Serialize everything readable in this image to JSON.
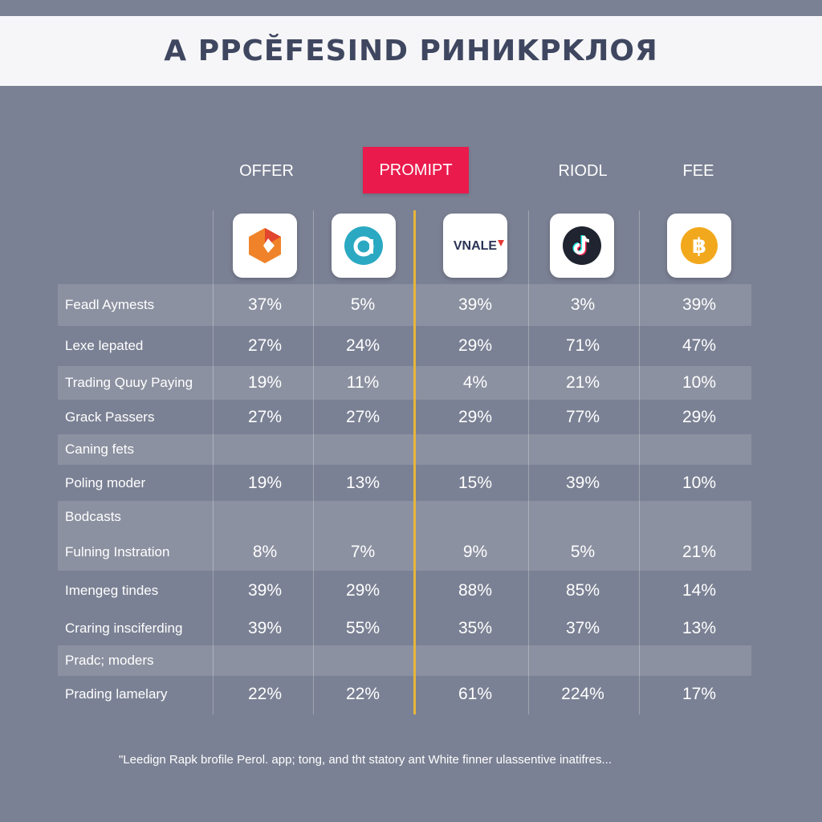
{
  "title": "A PPCĔFESIND PИHИKPKЛOЯ",
  "columns": [
    {
      "header": "OFFER",
      "logo": "orange-hexagon-logo",
      "highlight": false
    },
    {
      "header": "",
      "logo": "teal-circle-a-logo",
      "highlight": false
    },
    {
      "header": "PROMIPT",
      "logo": "vnale-logo",
      "highlight": true
    },
    {
      "header": "RIODL",
      "logo": "tiktok-logo",
      "highlight": false
    },
    {
      "header": "FEE",
      "logo": "bitcoin-logo",
      "highlight": false
    }
  ],
  "logo_text": {
    "vnale": "VNALE"
  },
  "rows": [
    {
      "label": "Feadl Aymests",
      "values": [
        "37%",
        "5%",
        "39%",
        "3%",
        "39%"
      ]
    },
    {
      "label": "Lexe lepated",
      "values": [
        "27%",
        "24%",
        "29%",
        "71%",
        "47%"
      ]
    },
    {
      "label": "Trading Quuy Paying",
      "values": [
        "19%",
        "11%",
        "4%",
        "21%",
        "10%"
      ]
    },
    {
      "label": "Grack Passers",
      "values": [
        "27%",
        "27%",
        "29%",
        "77%",
        "29%"
      ]
    },
    {
      "label": "Caning fets",
      "values": [
        "",
        "",
        "",
        "",
        ""
      ]
    },
    {
      "label": "Poling moder",
      "values": [
        "19%",
        "13%",
        "15%",
        "39%",
        "10%"
      ]
    },
    {
      "label": "Bodcasts",
      "values": [
        "",
        "",
        "",
        "",
        ""
      ]
    },
    {
      "label": "Fulning Instration",
      "values": [
        "8%",
        "7%",
        "9%",
        "5%",
        "21%"
      ]
    },
    {
      "label": "Imengeg tindes",
      "values": [
        "39%",
        "29%",
        "88%",
        "85%",
        "14%"
      ]
    },
    {
      "label": "Craring insciferding",
      "values": [
        "39%",
        "55%",
        "35%",
        "37%",
        "13%"
      ]
    },
    {
      "label": "Pradc; moders",
      "values": [
        "",
        "",
        "",
        "",
        ""
      ]
    },
    {
      "label": "Prading lamelary",
      "values": [
        "22%",
        "22%",
        "61%",
        "224%",
        "17%"
      ]
    }
  ],
  "footnote": "\"Leedign Rapk brofile Perol. app; tong, and tht statory ant White finner ulassentive inatifres...",
  "colors": {
    "background": "#7b8194",
    "title_bar": "#f6f6f8",
    "title_text": "#3f4760",
    "highlight": "#ea1a4c",
    "divider": "#e8b53a"
  },
  "chart_data": {
    "type": "table",
    "title": "A PPCĔFESIND PИHИKPKЛOЯ",
    "columns": [
      "OFFER",
      "",
      "PROMIPT",
      "RIODL",
      "FEE"
    ],
    "rows": [
      {
        "label": "Feadl Aymests",
        "values": [
          "37%",
          "5%",
          "39%",
          "3%",
          "39%"
        ]
      },
      {
        "label": "Lexe lepated",
        "values": [
          "27%",
          "24%",
          "29%",
          "71%",
          "47%"
        ]
      },
      {
        "label": "Trading Quuy Paying",
        "values": [
          "19%",
          "11%",
          "4%",
          "21%",
          "10%"
        ]
      },
      {
        "label": "Grack Passers",
        "values": [
          "27%",
          "27%",
          "29%",
          "77%",
          "29%"
        ]
      },
      {
        "label": "Caning fets",
        "values": [
          "",
          "",
          "",
          "",
          ""
        ]
      },
      {
        "label": "Poling moder",
        "values": [
          "19%",
          "13%",
          "15%",
          "39%",
          "10%"
        ]
      },
      {
        "label": "Bodcasts",
        "values": [
          "",
          "",
          "",
          "",
          ""
        ]
      },
      {
        "label": "Fulning Instration",
        "values": [
          "8%",
          "7%",
          "9%",
          "5%",
          "21%"
        ]
      },
      {
        "label": "Imengeg tindes",
        "values": [
          "39%",
          "29%",
          "88%",
          "85%",
          "14%"
        ]
      },
      {
        "label": "Craring insciferding",
        "values": [
          "39%",
          "55%",
          "35%",
          "37%",
          "13%"
        ]
      },
      {
        "label": "Pradc; moders",
        "values": [
          "",
          "",
          "",
          "",
          ""
        ]
      },
      {
        "label": "Prading lamelary",
        "values": [
          "22%",
          "22%",
          "61%",
          "224%",
          "17%"
        ]
      }
    ]
  }
}
